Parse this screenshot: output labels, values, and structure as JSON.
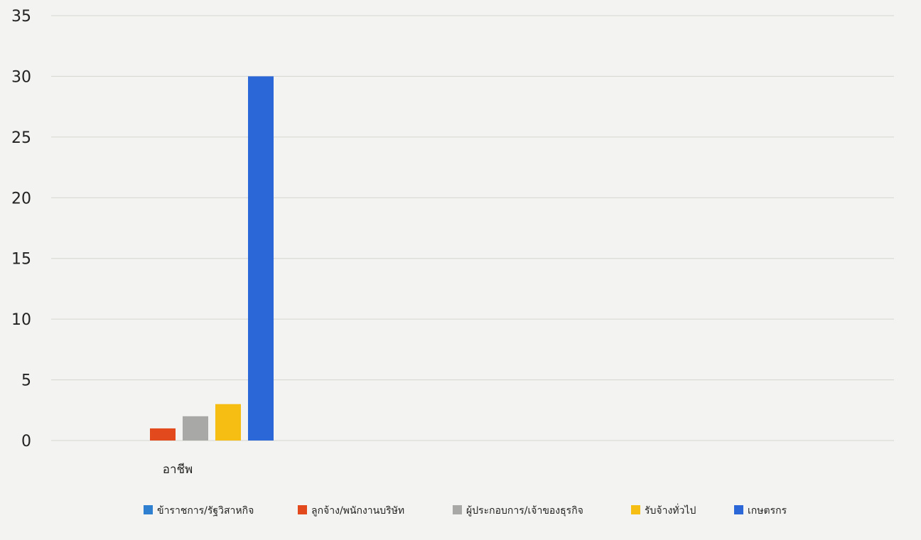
{
  "chart_data": {
    "type": "bar",
    "title": "",
    "xlabel": "",
    "ylabel": "",
    "categories": [
      "อาชีพ"
    ],
    "ylim": [
      0,
      35
    ],
    "yticks": [
      0,
      5,
      10,
      15,
      20,
      25,
      30,
      35
    ],
    "grid": true,
    "legend_position": "bottom",
    "series": [
      {
        "name": "ข้าราชการ/รัฐวิสาหกิจ",
        "color": "#2f7fd1",
        "values": [
          0
        ]
      },
      {
        "name": "ลูกจ้าง/พนักงานบริษัท",
        "color": "#e24a1d",
        "values": [
          1
        ]
      },
      {
        "name": "ผู้ประกอบการ/เจ้าของธุรกิจ",
        "color": "#a8a8a6",
        "values": [
          2
        ]
      },
      {
        "name": "รับจ้างทั่วไป",
        "color": "#f6bd12",
        "values": [
          3
        ]
      },
      {
        "name": "เกษตรกร",
        "color": "#2b67d6",
        "values": [
          30
        ]
      }
    ]
  }
}
